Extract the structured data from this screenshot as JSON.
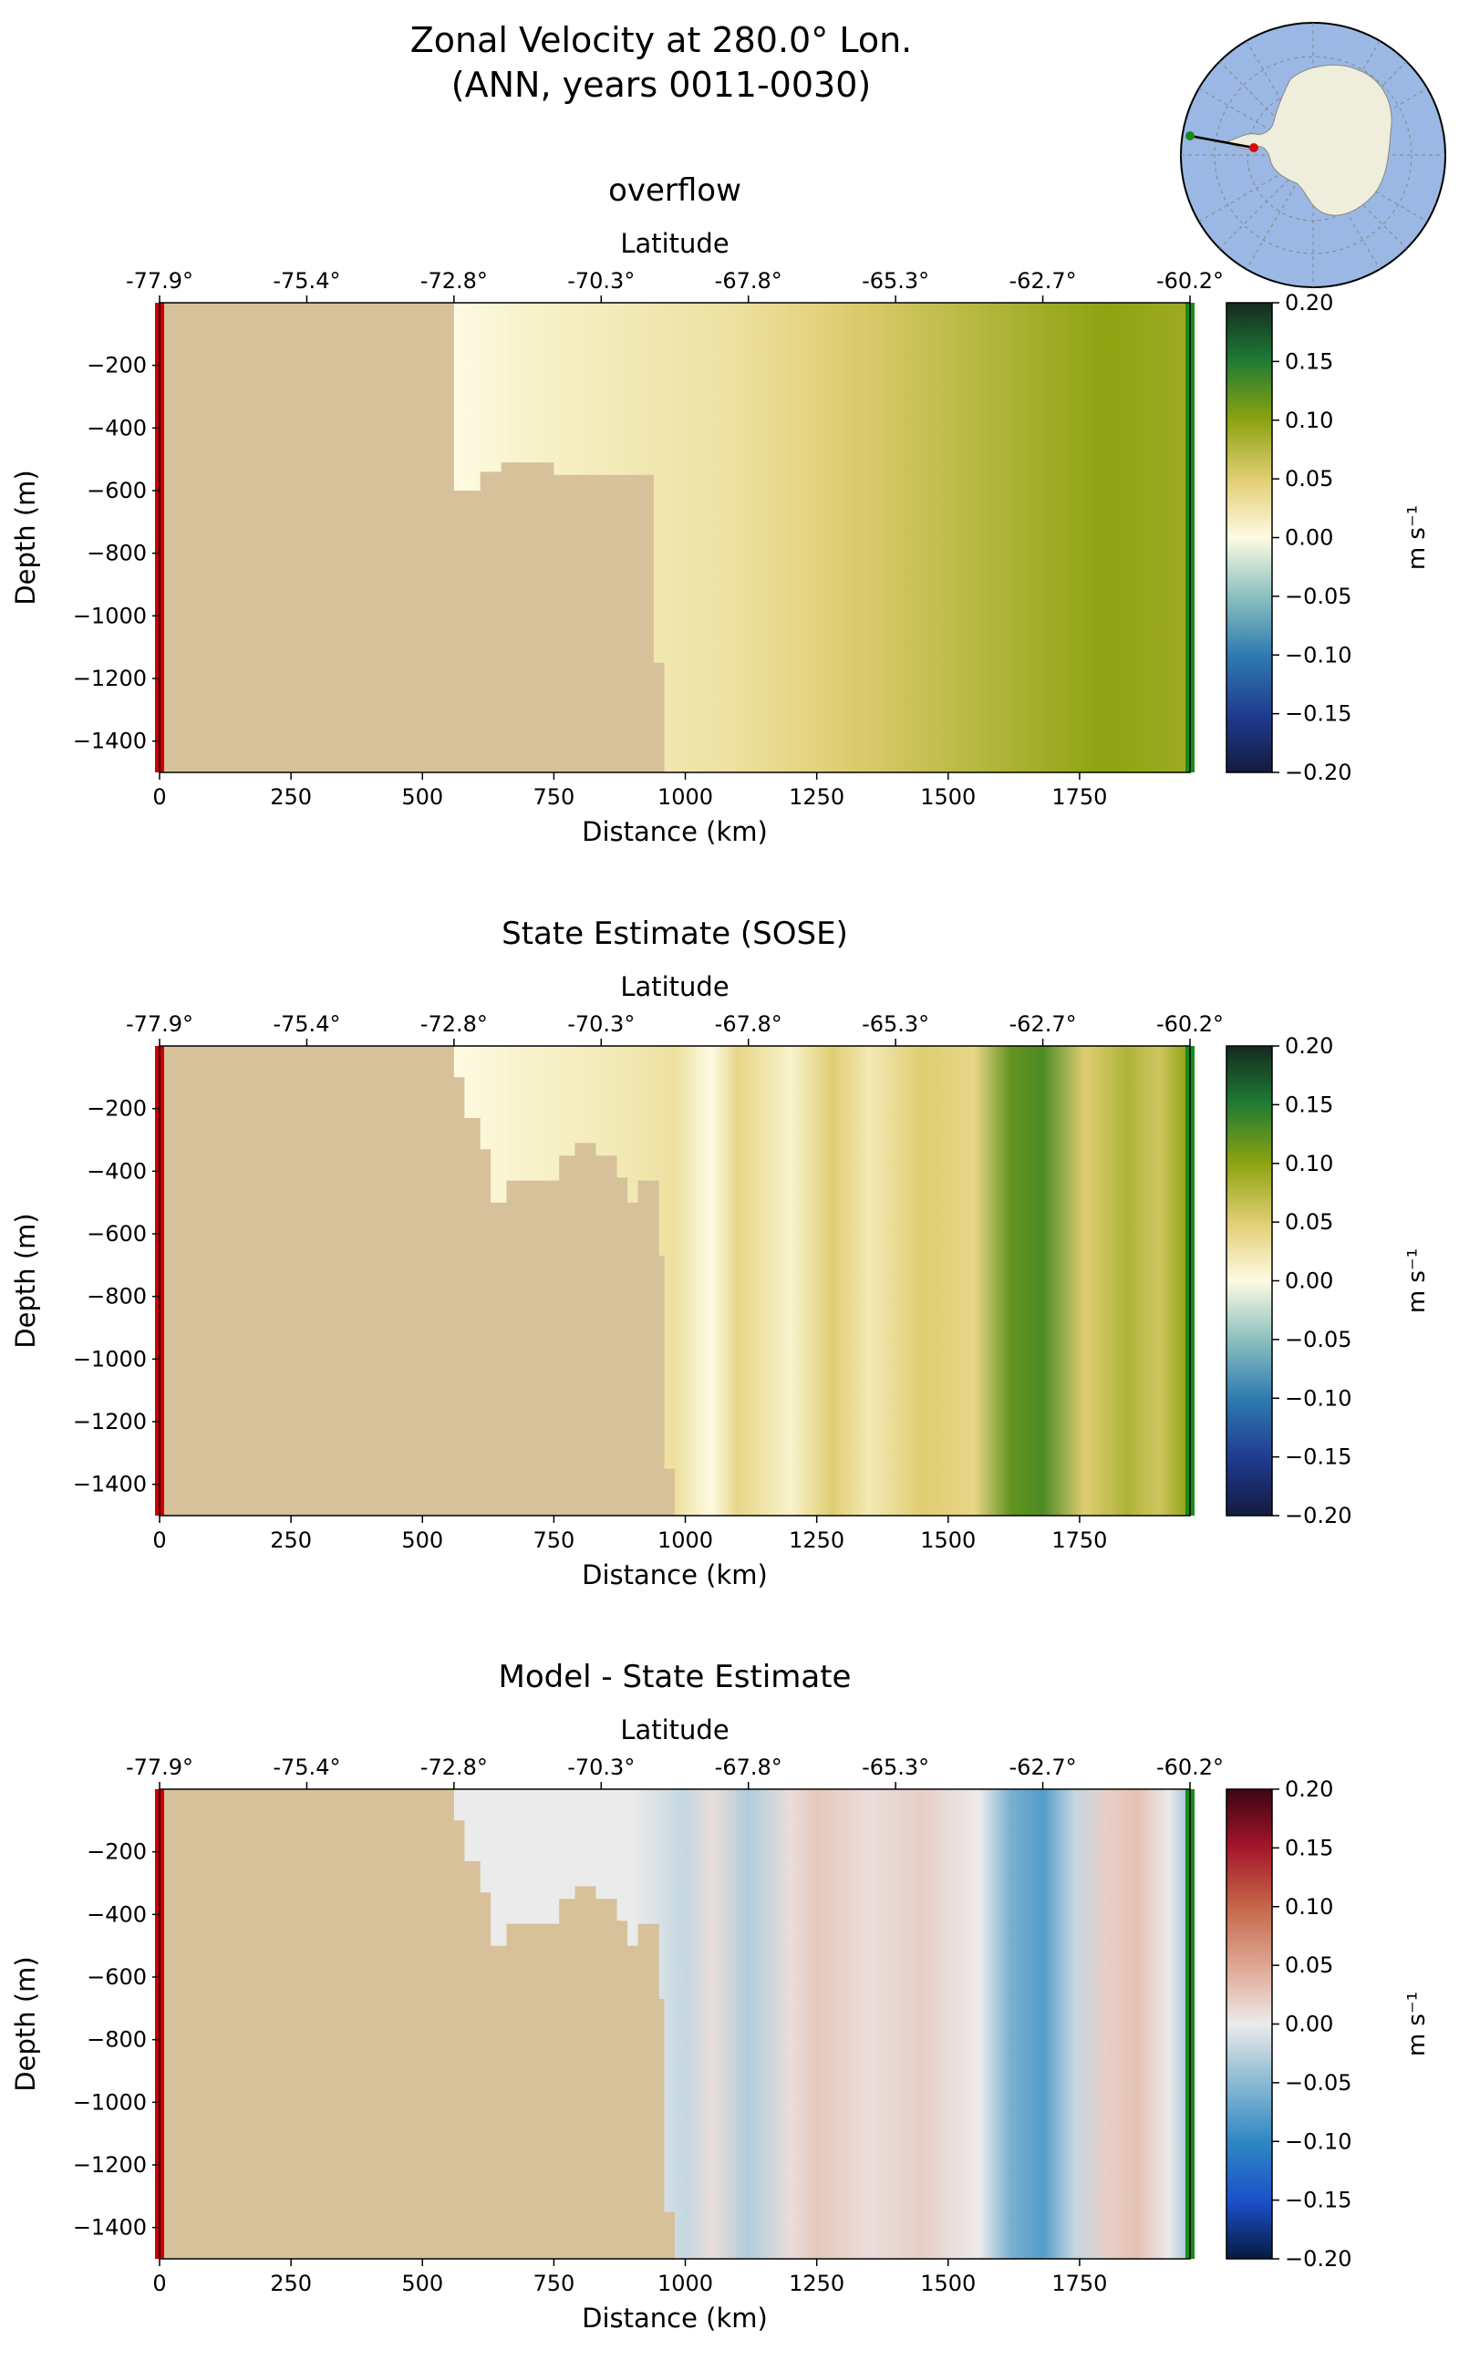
{
  "figure": {
    "title_line1": "Zonal Velocity at 280.0° Lon.",
    "title_line2": "(ANN, years 0011-0030)"
  },
  "inset_map": {
    "description_icon": "antarctica-locator-map-icon",
    "colors": {
      "ocean": "#9ab8e3",
      "land": "#efeddb",
      "start_dot": "#d01010",
      "end_dot": "#1a8a1a"
    }
  },
  "colors": {
    "land_mask": "#d7c19a",
    "start_bar": "#cc0000",
    "end_bar": "#1a8a1a"
  },
  "chart_data": [
    {
      "type": "heatmap",
      "title": "overflow",
      "xlabel": "Distance (km)",
      "ylabel": "Depth (m)",
      "top_axis_label": "Latitude",
      "top_ticks": [
        "-77.9°",
        "-75.4°",
        "-72.8°",
        "-70.3°",
        "-67.8°",
        "-65.3°",
        "-62.7°",
        "-60.2°"
      ],
      "x_ticks": [
        0,
        250,
        500,
        750,
        1000,
        1250,
        1500,
        1750
      ],
      "y_ticks": [
        -200,
        -400,
        -600,
        -800,
        -1000,
        -1200,
        -1400
      ],
      "xlim": [
        0,
        1960
      ],
      "ylim": [
        -1500,
        0
      ],
      "colorbar": {
        "label": "m s⁻¹",
        "ticks": [
          "0.20",
          "0.15",
          "0.10",
          "0.05",
          "0.00",
          "−0.05",
          "−0.10",
          "−0.15",
          "−0.20"
        ],
        "range": [
          -0.2,
          0.2
        ],
        "cmap": "velocity"
      },
      "profile_km": [
        560,
        700,
        900,
        1100,
        1300,
        1500,
        1700,
        1800,
        1960
      ],
      "profile_u": [
        0.0,
        0.01,
        0.02,
        0.03,
        0.05,
        0.07,
        0.09,
        0.1,
        0.09
      ],
      "land_mask": [
        [
          0,
          -1500
        ],
        [
          0,
          0
        ],
        [
          560,
          0
        ],
        [
          560,
          -600
        ],
        [
          610,
          -600
        ],
        [
          610,
          -540
        ],
        [
          650,
          -540
        ],
        [
          650,
          -510
        ],
        [
          750,
          -510
        ],
        [
          750,
          -550
        ],
        [
          940,
          -550
        ],
        [
          940,
          -1150
        ],
        [
          960,
          -1150
        ],
        [
          960,
          -1500
        ]
      ]
    },
    {
      "type": "heatmap",
      "title": "State Estimate (SOSE)",
      "xlabel": "Distance (km)",
      "ylabel": "Depth (m)",
      "top_axis_label": "Latitude",
      "top_ticks": [
        "-77.9°",
        "-75.4°",
        "-72.8°",
        "-70.3°",
        "-67.8°",
        "-65.3°",
        "-62.7°",
        "-60.2°"
      ],
      "x_ticks": [
        0,
        250,
        500,
        750,
        1000,
        1250,
        1500,
        1750
      ],
      "y_ticks": [
        -200,
        -400,
        -600,
        -800,
        -1000,
        -1200,
        -1400
      ],
      "xlim": [
        0,
        1960
      ],
      "ylim": [
        -1500,
        0
      ],
      "colorbar": {
        "label": "m s⁻¹",
        "ticks": [
          "0.20",
          "0.15",
          "0.10",
          "0.05",
          "0.00",
          "−0.05",
          "−0.10",
          "−0.15",
          "−0.20"
        ],
        "range": [
          -0.2,
          0.2
        ],
        "cmap": "velocity"
      },
      "profile_km": [
        560,
        700,
        880,
        980,
        1050,
        1100,
        1200,
        1280,
        1350,
        1450,
        1550,
        1620,
        1680,
        1760,
        1840,
        1900,
        1960
      ],
      "profile_u": [
        0.0,
        0.01,
        0.02,
        0.03,
        0.0,
        0.04,
        0.01,
        0.05,
        0.02,
        0.05,
        0.04,
        0.12,
        0.13,
        0.05,
        0.08,
        0.06,
        0.1
      ],
      "land_mask": [
        [
          0,
          -1500
        ],
        [
          0,
          0
        ],
        [
          560,
          0
        ],
        [
          560,
          -100
        ],
        [
          580,
          -100
        ],
        [
          580,
          -230
        ],
        [
          610,
          -230
        ],
        [
          610,
          -330
        ],
        [
          630,
          -330
        ],
        [
          630,
          -500
        ],
        [
          660,
          -500
        ],
        [
          660,
          -430
        ],
        [
          760,
          -430
        ],
        [
          760,
          -350
        ],
        [
          790,
          -350
        ],
        [
          790,
          -310
        ],
        [
          830,
          -310
        ],
        [
          830,
          -350
        ],
        [
          870,
          -350
        ],
        [
          870,
          -420
        ],
        [
          890,
          -420
        ],
        [
          890,
          -500
        ],
        [
          910,
          -500
        ],
        [
          910,
          -430
        ],
        [
          950,
          -430
        ],
        [
          950,
          -670
        ],
        [
          960,
          -670
        ],
        [
          960,
          -1350
        ],
        [
          980,
          -1350
        ],
        [
          980,
          -1500
        ]
      ]
    },
    {
      "type": "heatmap",
      "title": "Model - State Estimate",
      "xlabel": "Distance (km)",
      "ylabel": "Depth (m)",
      "top_axis_label": "Latitude",
      "top_ticks": [
        "-77.9°",
        "-75.4°",
        "-72.8°",
        "-70.3°",
        "-67.8°",
        "-65.3°",
        "-62.7°",
        "-60.2°"
      ],
      "x_ticks": [
        0,
        250,
        500,
        750,
        1000,
        1250,
        1500,
        1750
      ],
      "y_ticks": [
        -200,
        -400,
        -600,
        -800,
        -1000,
        -1200,
        -1400
      ],
      "xlim": [
        0,
        1960
      ],
      "ylim": [
        -1500,
        0
      ],
      "colorbar": {
        "label": "m s⁻¹",
        "ticks": [
          "0.20",
          "0.15",
          "0.10",
          "0.05",
          "0.00",
          "−0.05",
          "−0.10",
          "−0.15",
          "−0.20"
        ],
        "range": [
          -0.2,
          0.2
        ],
        "cmap": "diverging"
      },
      "profile_km": [
        560,
        900,
        1000,
        1050,
        1120,
        1200,
        1250,
        1350,
        1450,
        1560,
        1620,
        1680,
        1740,
        1800,
        1860,
        1920,
        1960
      ],
      "profile_u": [
        0.0,
        0.0,
        -0.02,
        0.01,
        -0.03,
        0.01,
        0.025,
        0.01,
        0.02,
        0.0,
        -0.06,
        -0.08,
        -0.02,
        0.02,
        0.03,
        0.0,
        -0.04
      ],
      "land_mask": [
        [
          0,
          -1500
        ],
        [
          0,
          0
        ],
        [
          560,
          0
        ],
        [
          560,
          -100
        ],
        [
          580,
          -100
        ],
        [
          580,
          -230
        ],
        [
          610,
          -230
        ],
        [
          610,
          -330
        ],
        [
          630,
          -330
        ],
        [
          630,
          -500
        ],
        [
          660,
          -500
        ],
        [
          660,
          -430
        ],
        [
          760,
          -430
        ],
        [
          760,
          -350
        ],
        [
          790,
          -350
        ],
        [
          790,
          -310
        ],
        [
          830,
          -310
        ],
        [
          830,
          -350
        ],
        [
          870,
          -350
        ],
        [
          870,
          -420
        ],
        [
          890,
          -420
        ],
        [
          890,
          -500
        ],
        [
          910,
          -500
        ],
        [
          910,
          -430
        ],
        [
          950,
          -430
        ],
        [
          950,
          -670
        ],
        [
          960,
          -670
        ],
        [
          960,
          -1350
        ],
        [
          980,
          -1350
        ],
        [
          980,
          -1500
        ]
      ]
    }
  ]
}
